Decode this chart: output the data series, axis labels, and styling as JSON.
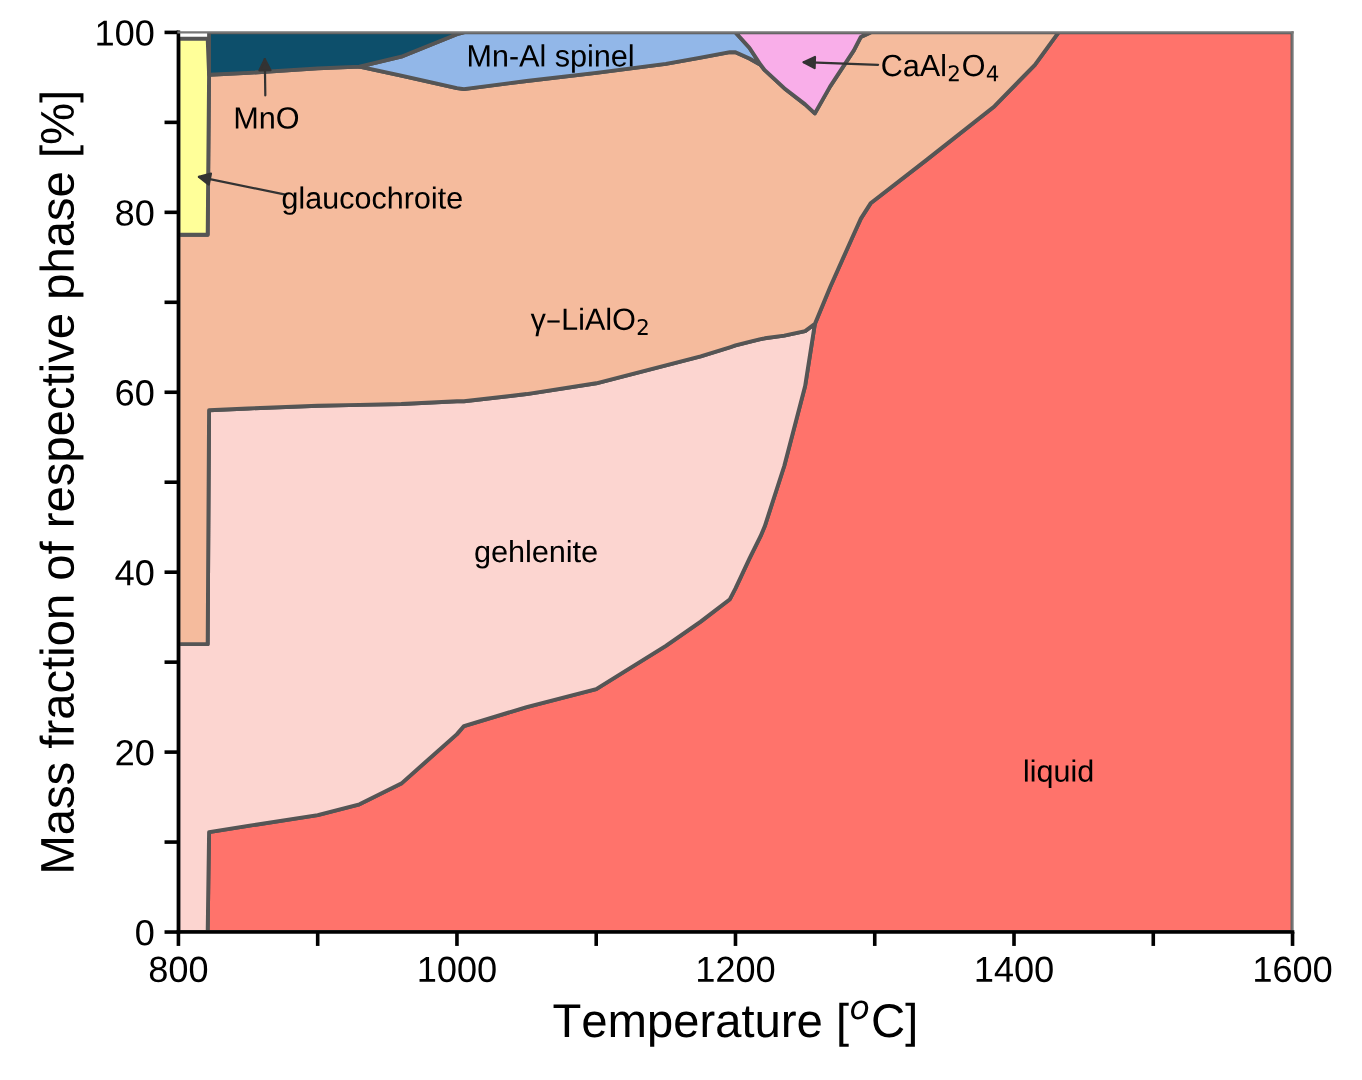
{
  "chart_data": {
    "type": "area",
    "stacked": true,
    "xlabel": "Temperature [$^{o}$C]",
    "ylabel": "Mass fraction of respective phase [%]",
    "x": [
      800,
      821,
      822,
      850,
      900,
      930,
      960,
      1000,
      1005,
      1050,
      1100,
      1150,
      1175,
      1196,
      1200,
      1210,
      1218,
      1221,
      1235,
      1250,
      1257,
      1268,
      1285,
      1290,
      1297,
      1337,
      1386,
      1415,
      1432,
      1500,
      1600
    ],
    "series": [
      {
        "color": "#ff736b",
        "values": [
          0,
          0,
          11.1,
          11.8,
          13,
          14.2,
          16.5,
          22,
          22.9,
          25,
          27,
          31.8,
          34.5,
          37,
          38.2,
          41.5,
          44,
          45.1,
          51.8,
          60.7,
          67.6,
          71.7,
          77.6,
          79.3,
          81,
          85.8,
          91.8,
          96.4,
          100,
          100,
          100
        ]
      },
      {
        "color": "#fcd5d0",
        "values": [
          32,
          32,
          46.9,
          46.4,
          45.5,
          44.4,
          42.2,
          37,
          36.1,
          34.8,
          34,
          31.2,
          29.5,
          28,
          27,
          24.1,
          21.9,
          20.9,
          14.5,
          6.1,
          0,
          null,
          null,
          null,
          null,
          null,
          null,
          null,
          null,
          null,
          null
        ]
      },
      {
        "color": "#f5bb9d",
        "values": [
          45.5,
          45.5,
          37.3,
          37.3,
          37.5,
          37.6,
          36.5,
          34.8,
          34.7,
          34.8,
          34.5,
          33.5,
          33.2,
          32.8,
          32.6,
          31.5,
          30.5,
          29.8,
          27.5,
          25.2,
          23.4,
          22.3,
          20.4,
          20.2,
          19,
          14.2,
          8.2,
          3.6,
          0,
          null,
          null
        ]
      },
      {
        "color": "#ffff99",
        "values": [
          21.8,
          21.8,
          0,
          null,
          null,
          null,
          null,
          null,
          null,
          null,
          null,
          null,
          null,
          null,
          null,
          null,
          null,
          null,
          null,
          null,
          null,
          null,
          null,
          null,
          null,
          null,
          null,
          null,
          null,
          null,
          null
        ]
      },
      {
        "color": "#92b7e8",
        "values": [
          null,
          null,
          null,
          null,
          null,
          0,
          2.1,
          6.0,
          6.3,
          5.4,
          4.5,
          3.5,
          2.8,
          2.2,
          2.2,
          1.2,
          0,
          null,
          null,
          null,
          null,
          null,
          null,
          null,
          null,
          null,
          null,
          null,
          null,
          null,
          null
        ]
      },
      {
        "color": "#f9aee9",
        "values": [
          null,
          null,
          null,
          null,
          null,
          null,
          null,
          null,
          null,
          null,
          null,
          null,
          null,
          null,
          0,
          1.7,
          3.6,
          4.2,
          6.2,
          8,
          9,
          6,
          2,
          0.5,
          0,
          null,
          null,
          null,
          null,
          null,
          null
        ]
      },
      {
        "color": "#0d4f6b",
        "values": [
          null,
          null,
          4.7,
          4.5,
          4,
          3.8,
          2.7,
          0.2,
          0,
          null,
          null,
          null,
          null,
          null,
          null,
          null,
          null,
          null,
          null,
          null,
          null,
          null,
          null,
          null,
          null,
          null,
          null,
          null,
          null,
          null,
          null
        ]
      }
    ],
    "annotations": [
      "MnO",
      {
        "text": "glaucochroite",
        "x": 813,
        "y": 84
      },
      "Mn-Al spinel",
      "CaAl$_{2}$O$_{4}$",
      "γ–LiAlO$_{2}$",
      "gehlenite",
      "liquid"
    ],
    "xlim": [
      800,
      1600
    ],
    "ylim": [
      0,
      100
    ],
    "xticks": [
      800,
      {
        "value": 900,
        "label": null
      },
      1000,
      {
        "value": 1100,
        "label": null
      },
      1200,
      {
        "value": 1300,
        "label": null
      },
      1400,
      {
        "value": 1500,
        "label": null
      },
      1600
    ],
    "yticks": [
      0,
      {
        "value": 10,
        "label": null
      },
      20,
      {
        "value": 30,
        "label": null
      },
      40,
      {
        "value": 50,
        "label": null
      },
      60,
      {
        "value": 70,
        "label": null
      },
      80,
      {
        "value": 90,
        "label": null
      },
      100
    ],
    "grid": false
  }
}
